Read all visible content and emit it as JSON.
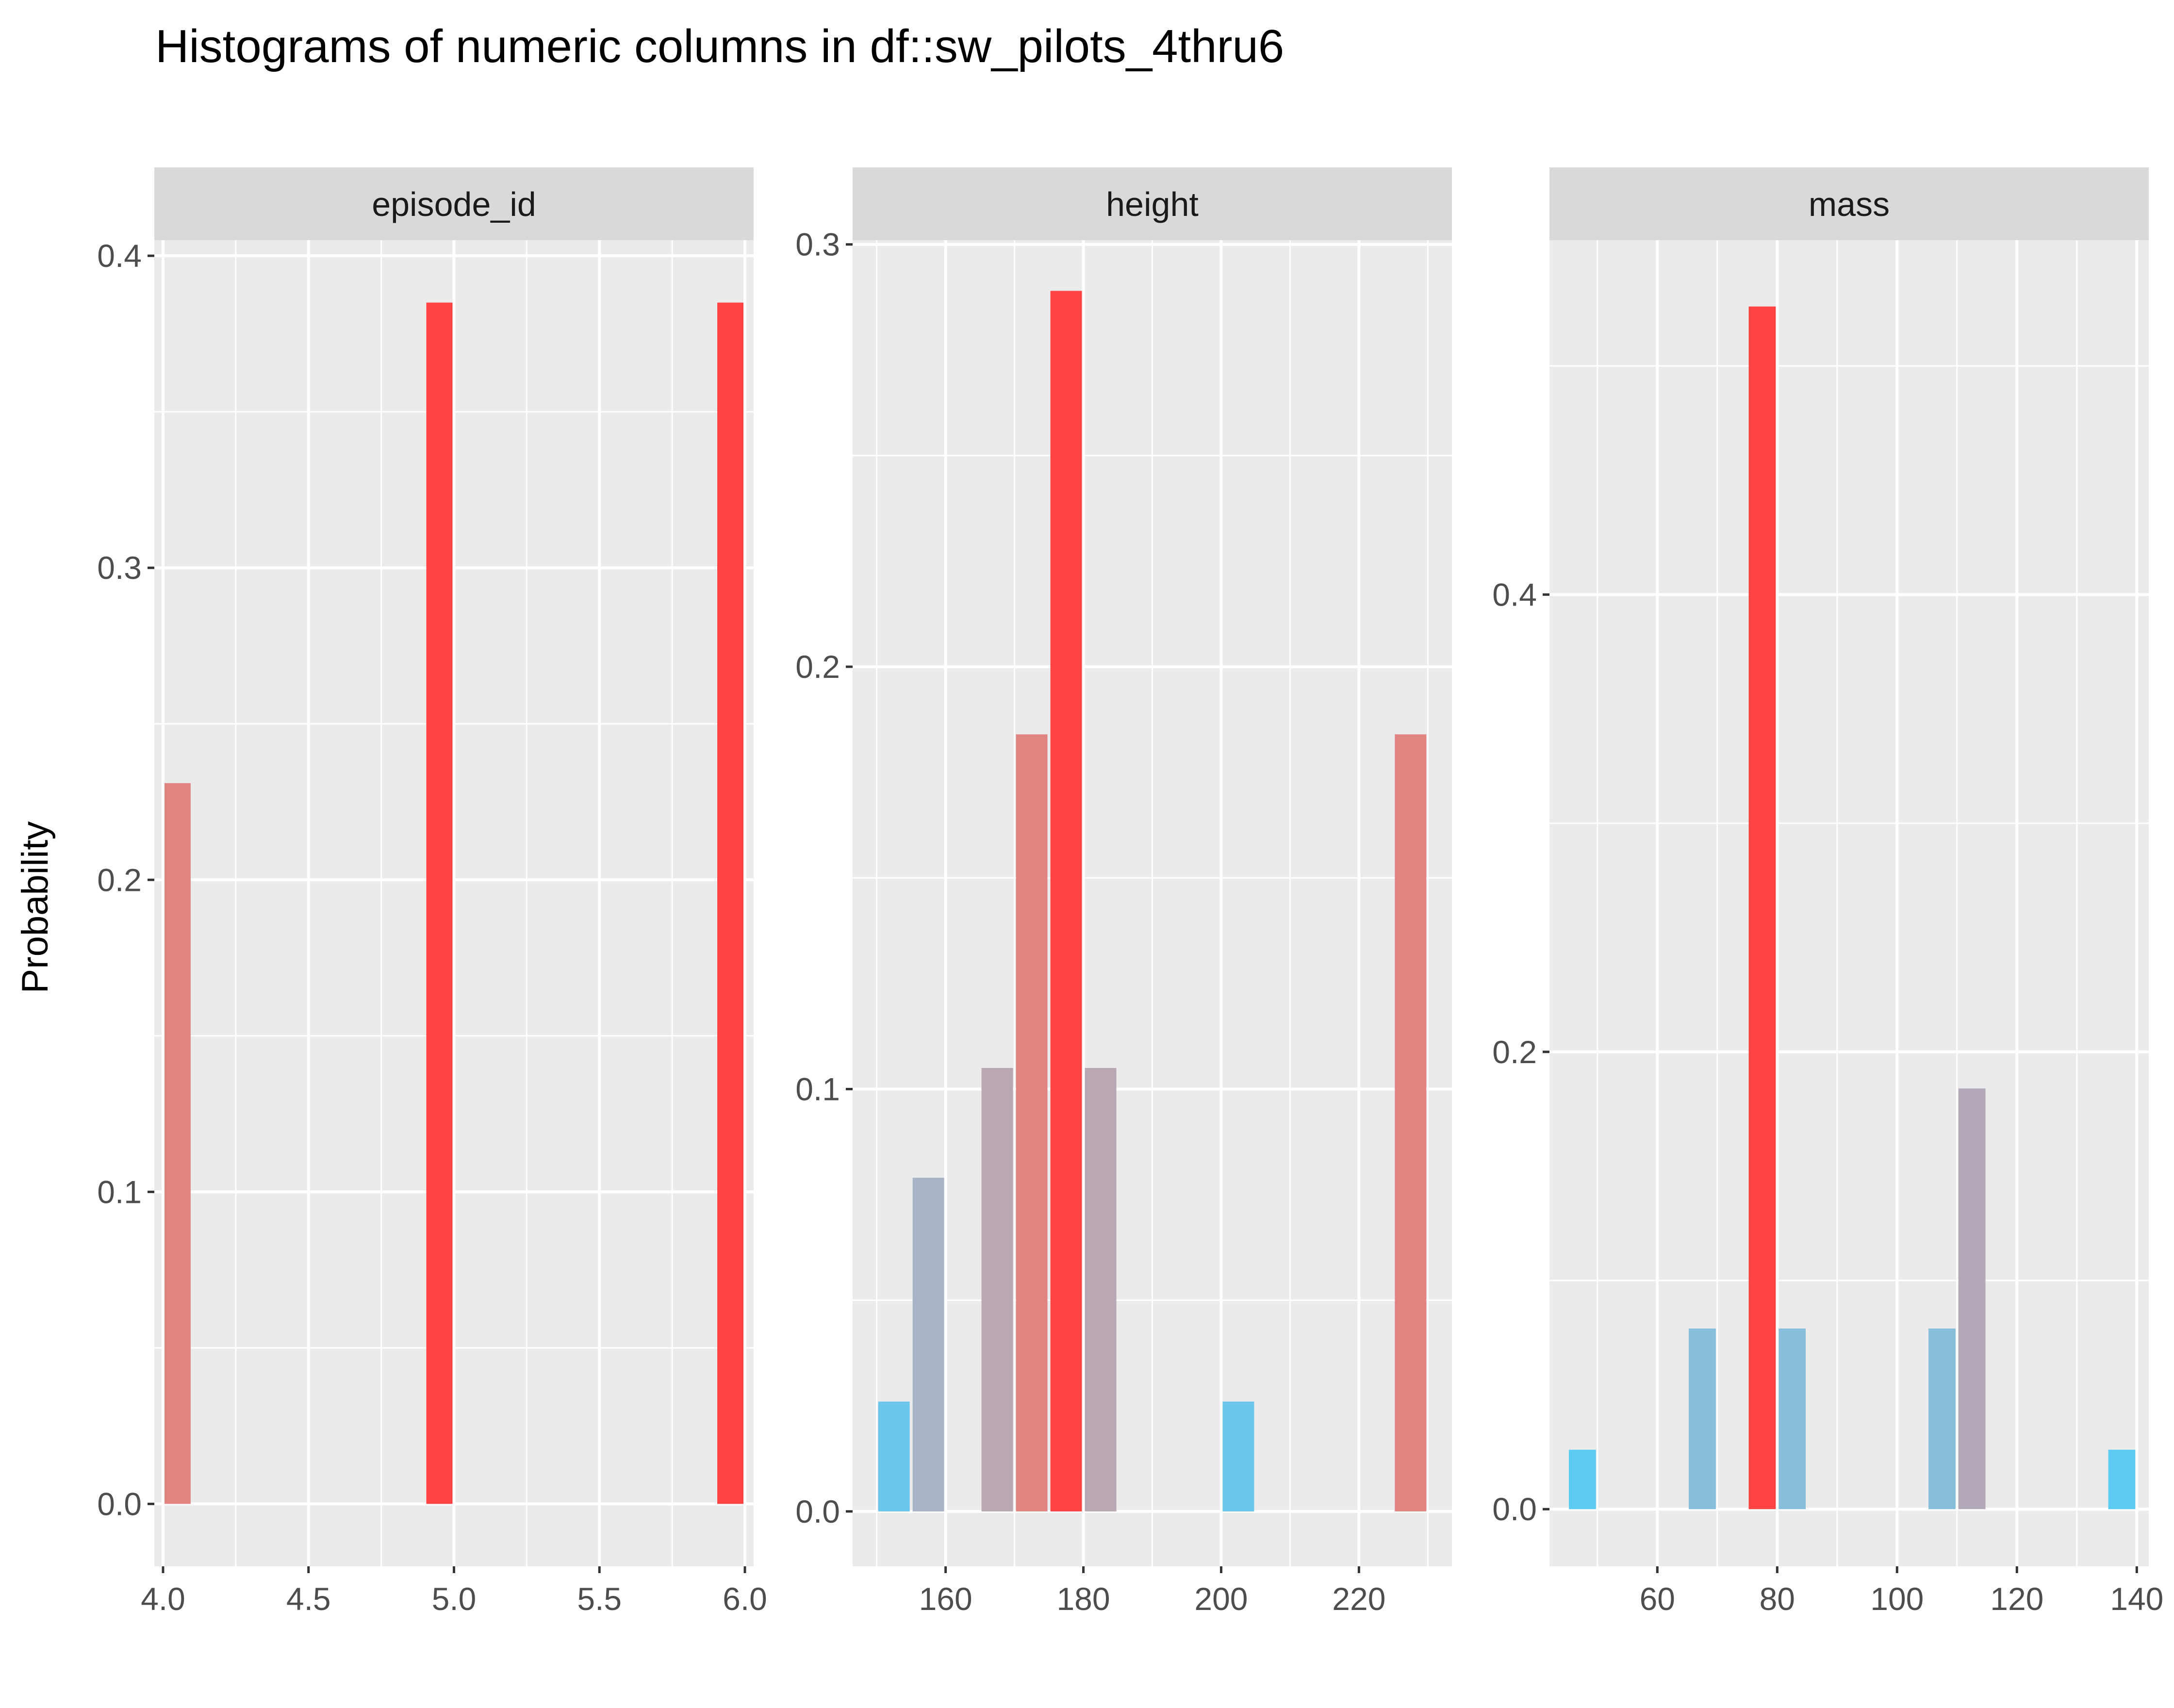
{
  "chart_data": {
    "title": "Histograms of numeric columns in df::sw_pilots_4thru6",
    "ylabel": "Probability",
    "type": "bar",
    "grid": true,
    "panel_background": "#ebebeb",
    "strip_background": "#d9d9d9",
    "fill_scale": {
      "low": "#5bcbf4",
      "mid": "#b3a8b7",
      "high": "#ff4343"
    },
    "panels": [
      {
        "title": "episode_id",
        "xlim": [
          3.97,
          6.03
        ],
        "ylim": [
          -0.02,
          0.405
        ],
        "x_ticks": [
          "4.0",
          "4.5",
          "5.0",
          "5.5",
          "6.0"
        ],
        "x_tick_values": [
          4.0,
          4.5,
          5.0,
          5.5,
          6.0
        ],
        "y_ticks": [
          "0.0",
          "0.1",
          "0.2",
          "0.3",
          "0.4"
        ],
        "y_tick_values": [
          0.0,
          0.1,
          0.2,
          0.3,
          0.4
        ],
        "bin_width": 0.1,
        "bars": [
          {
            "x": 4.05,
            "value": 0.231,
            "color": "#e18481"
          },
          {
            "x": 4.95,
            "value": 0.385,
            "color": "#ff4343"
          },
          {
            "x": 5.95,
            "value": 0.385,
            "color": "#ff4343"
          }
        ]
      },
      {
        "title": "height",
        "xlim": [
          146.5,
          233.5
        ],
        "ylim": [
          -0.013,
          0.301
        ],
        "x_ticks": [
          "160",
          "180",
          "200",
          "220"
        ],
        "x_tick_values": [
          160,
          180,
          200,
          220
        ],
        "y_ticks": [
          "0.0",
          "0.1",
          "0.2",
          "0.3"
        ],
        "y_tick_values": [
          0.0,
          0.1,
          0.2,
          0.3
        ],
        "bin_width": 5,
        "bars": [
          {
            "x": 152.5,
            "value": 0.026,
            "color": "#6ac6eb"
          },
          {
            "x": 157.5,
            "value": 0.079,
            "color": "#a8b3c8"
          },
          {
            "x": 167.5,
            "value": 0.105,
            "color": "#b9a7b3"
          },
          {
            "x": 172.5,
            "value": 0.184,
            "color": "#e18481"
          },
          {
            "x": 177.5,
            "value": 0.289,
            "color": "#ff4343"
          },
          {
            "x": 182.5,
            "value": 0.105,
            "color": "#b9a7b3"
          },
          {
            "x": 202.5,
            "value": 0.026,
            "color": "#6ac6eb"
          },
          {
            "x": 227.5,
            "value": 0.184,
            "color": "#e18481"
          }
        ]
      },
      {
        "title": "mass",
        "xlim": [
          42,
          142
        ],
        "ylim": [
          -0.025,
          0.555
        ],
        "x_ticks": [
          "60",
          "80",
          "100",
          "120",
          "140"
        ],
        "x_tick_values": [
          60,
          80,
          100,
          120,
          140
        ],
        "y_ticks": [
          "0.0",
          "0.2",
          "0.4"
        ],
        "y_tick_values": [
          0.0,
          0.2,
          0.4
        ],
        "bin_width": 5,
        "bars": [
          {
            "x": 47.5,
            "value": 0.026,
            "color": "#5bcbf4"
          },
          {
            "x": 67.5,
            "value": 0.079,
            "color": "#87bfdb"
          },
          {
            "x": 77.5,
            "value": 0.526,
            "color": "#ff4343"
          },
          {
            "x": 82.5,
            "value": 0.079,
            "color": "#87bfdb"
          },
          {
            "x": 107.5,
            "value": 0.079,
            "color": "#87bfdb"
          },
          {
            "x": 112.5,
            "value": 0.184,
            "color": "#b3a8b7"
          },
          {
            "x": 137.5,
            "value": 0.026,
            "color": "#5bcbf4"
          }
        ]
      }
    ]
  }
}
